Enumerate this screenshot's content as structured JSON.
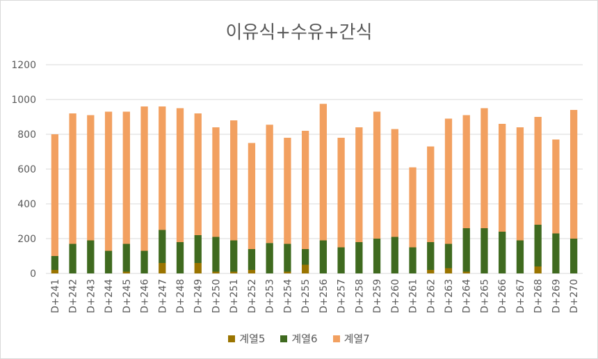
{
  "chart_data": {
    "type": "bar",
    "stacked": true,
    "title": "이유식+수유+간식",
    "xlabel": "",
    "ylabel": "",
    "ylim": [
      0,
      1200
    ],
    "yticks": [
      0,
      200,
      400,
      600,
      800,
      1000,
      1200
    ],
    "grid": true,
    "legend_position": "bottom",
    "categories": [
      "D+241",
      "D+242",
      "D+243",
      "D+244",
      "D+245",
      "D+246",
      "D+247",
      "D+248",
      "D+249",
      "D+250",
      "D+251",
      "D+252",
      "D+253",
      "D+254",
      "D+255",
      "D+256",
      "D+257",
      "D+258",
      "D+259",
      "D+260",
      "D+261",
      "D+262",
      "D+263",
      "D+264",
      "D+265",
      "D+266",
      "D+267",
      "D+268",
      "D+269",
      "D+270"
    ],
    "series": [
      {
        "name": "계열5",
        "color": "#9a7400",
        "values": [
          20,
          0,
          0,
          0,
          10,
          0,
          60,
          0,
          60,
          10,
          10,
          20,
          0,
          10,
          50,
          0,
          0,
          0,
          0,
          0,
          0,
          20,
          30,
          10,
          0,
          0,
          0,
          40,
          0,
          0
        ]
      },
      {
        "name": "계열6",
        "color": "#3f6a1f",
        "values": [
          80,
          170,
          190,
          130,
          160,
          130,
          190,
          180,
          160,
          200,
          180,
          120,
          175,
          160,
          90,
          190,
          150,
          180,
          200,
          210,
          150,
          160,
          140,
          250,
          260,
          240,
          190,
          240,
          230,
          200
        ]
      },
      {
        "name": "계열7",
        "color": "#f2a060",
        "values": [
          700,
          750,
          720,
          800,
          760,
          830,
          710,
          770,
          700,
          630,
          690,
          610,
          680,
          610,
          680,
          785,
          630,
          660,
          730,
          620,
          460,
          550,
          720,
          650,
          690,
          620,
          650,
          620,
          540,
          740
        ]
      }
    ]
  }
}
